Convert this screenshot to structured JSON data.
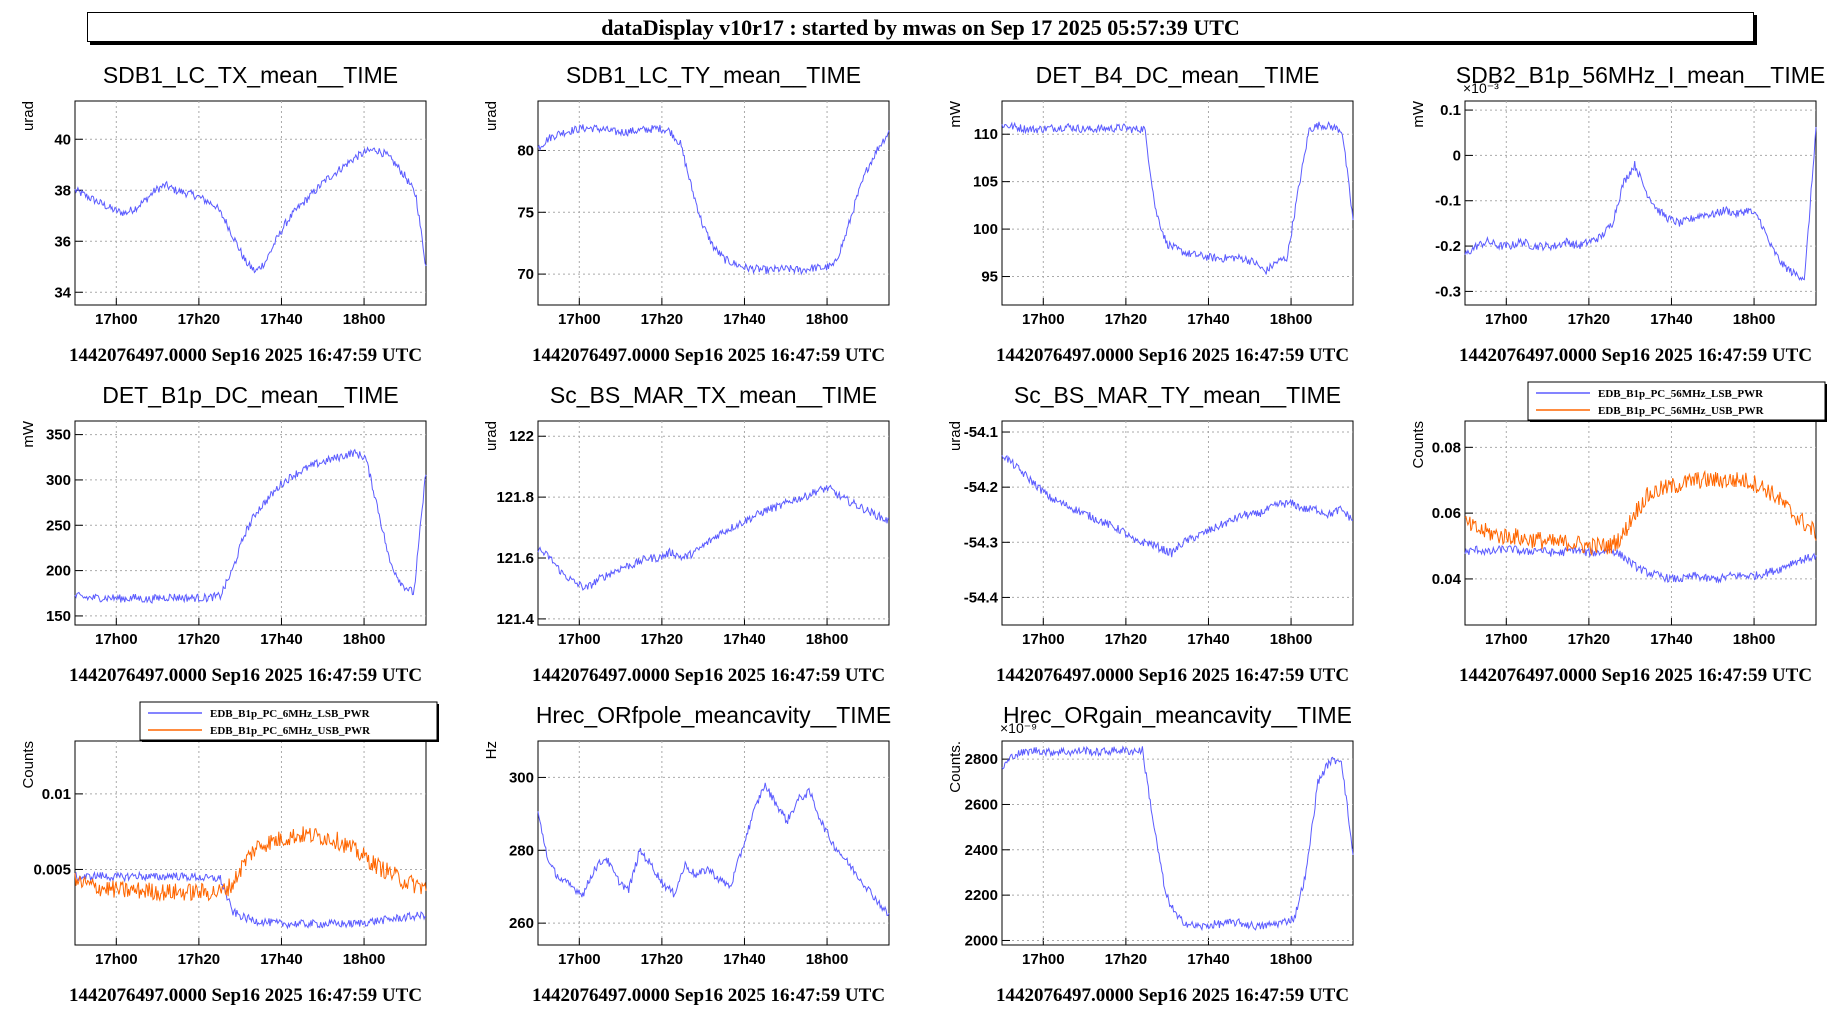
{
  "header": {
    "title": "dataDisplay v10r17 : started by mwas on Sep 17 2025 05:57:39 UTC"
  },
  "colors": {
    "primary": "#5c5cff",
    "secondary": "#ff6600",
    "frame": "#000000",
    "grid": "#aaaaaa"
  },
  "chart_data": [
    {
      "type": "line",
      "title": "SDB1_LC_TX_mean__TIME",
      "ylabel": "urad",
      "yticks": [
        34,
        36,
        38,
        40
      ],
      "ytick_labels": [
        "34",
        "36",
        "38",
        "40"
      ],
      "ylim": [
        33.5,
        41.5
      ],
      "x_ticks": [
        "17h00",
        "17h20",
        "17h40",
        "18h00"
      ],
      "footer": "1442076497.0000 Sep16 2025 16:47:59 UTC",
      "series": [
        {
          "values": [
            38,
            37.8,
            37.6,
            37.4,
            37.2,
            37.1,
            37.3,
            37.6,
            38,
            38.2,
            38,
            37.9,
            37.8,
            37.6,
            37.4,
            36.8,
            36,
            35.2,
            34.8,
            35.2,
            36,
            36.7,
            37.2,
            37.6,
            38,
            38.4,
            38.7,
            39,
            39.3,
            39.5,
            39.6,
            39.4,
            39,
            38.5,
            37.8,
            35
          ]
        }
      ]
    },
    {
      "type": "line",
      "title": "SDB1_LC_TY_mean__TIME",
      "ylabel": "urad",
      "yticks": [
        70,
        75,
        80
      ],
      "ytick_labels": [
        "70",
        "75",
        "80"
      ],
      "ylim": [
        67.5,
        84
      ],
      "x_ticks": [
        "17h00",
        "17h20",
        "17h40",
        "18h00"
      ],
      "footer": "1442076497.0000 Sep16 2025 16:47:59 UTC",
      "series": [
        {
          "values": [
            80.2,
            81,
            81.4,
            81.6,
            81.8,
            81.8,
            81.7,
            81.5,
            81.5,
            81.6,
            81.7,
            81.8,
            81.6,
            80.5,
            77,
            74,
            72.2,
            71.2,
            70.8,
            70.5,
            70.4,
            70.3,
            70.4,
            70.4,
            70.3,
            70.5,
            70.5,
            70.7,
            73,
            76,
            78.5,
            80.2,
            81.5
          ]
        }
      ]
    },
    {
      "type": "line",
      "title": "DET_B4_DC_mean__TIME",
      "ylabel": "mW",
      "yticks": [
        95,
        100,
        105,
        110
      ],
      "ytick_labels": [
        "95",
        "100",
        "105",
        "110"
      ],
      "ylim": [
        92,
        113.5
      ],
      "x_ticks": [
        "17h00",
        "17h20",
        "17h40",
        "18h00"
      ],
      "footer": "1442076497.0000 Sep16 2025 16:47:59 UTC",
      "series": [
        {
          "values": [
            111,
            110.8,
            110.6,
            110.5,
            110.6,
            110.7,
            110.8,
            110.6,
            110.5,
            110.6,
            110.6,
            110.7,
            110.5,
            110.6,
            102,
            98.5,
            97.8,
            97.4,
            97.2,
            97,
            96.9,
            97,
            96.9,
            96.5,
            95.5,
            96.5,
            97,
            104,
            110.5,
            111,
            110.8,
            110.4,
            101
          ]
        }
      ]
    },
    {
      "type": "line",
      "title": "SDB2_B1p_56MHz_I_mean__TIME",
      "ylabel": "mW",
      "multiplier": "×10⁻³",
      "yticks": [
        -0.3,
        -0.2,
        -0.1,
        0,
        0.1
      ],
      "ytick_labels": [
        "-0.3",
        "-0.2",
        "-0.1",
        "0",
        "0.1"
      ],
      "ylim": [
        -0.33,
        0.12
      ],
      "x_ticks": [
        "17h00",
        "17h20",
        "17h40",
        "18h00"
      ],
      "footer": "1442076497.0000 Sep16 2025 16:47:59 UTC",
      "series": [
        {
          "values": [
            -0.22,
            -0.2,
            -0.19,
            -0.2,
            -0.2,
            -0.19,
            -0.2,
            -0.2,
            -0.2,
            -0.19,
            -0.2,
            -0.19,
            -0.18,
            -0.15,
            -0.06,
            -0.02,
            -0.08,
            -0.12,
            -0.14,
            -0.15,
            -0.14,
            -0.13,
            -0.13,
            -0.12,
            -0.13,
            -0.12,
            -0.14,
            -0.2,
            -0.24,
            -0.26,
            -0.27,
            0.06
          ]
        }
      ]
    },
    {
      "type": "line",
      "title": "DET_B1p_DC_mean__TIME",
      "ylabel": "mW",
      "yticks": [
        150,
        200,
        250,
        300,
        350
      ],
      "ytick_labels": [
        "150",
        "200",
        "250",
        "300",
        "350"
      ],
      "ylim": [
        140,
        365
      ],
      "x_ticks": [
        "17h00",
        "17h20",
        "17h40",
        "18h00"
      ],
      "footer": "1442076497.0000 Sep16 2025 16:47:59 UTC",
      "series": [
        {
          "values": [
            172,
            170,
            170,
            170,
            169,
            170,
            168,
            170,
            171,
            170,
            170,
            170,
            172,
            200,
            240,
            265,
            280,
            295,
            305,
            312,
            318,
            322,
            326,
            330,
            325,
            270,
            210,
            185,
            175,
            310
          ]
        }
      ]
    },
    {
      "type": "line",
      "title": "Sc_BS_MAR_TX_mean__TIME",
      "ylabel": "urad",
      "yticks": [
        121.4,
        121.6,
        121.8,
        122
      ],
      "ytick_labels": [
        "121.4",
        "121.6",
        "121.8",
        "122"
      ],
      "ylim": [
        121.38,
        122.05
      ],
      "x_ticks": [
        "17h00",
        "17h20",
        "17h40",
        "18h00"
      ],
      "footer": "1442076497.0000 Sep16 2025 16:47:59 UTC",
      "series": [
        {
          "values": [
            121.63,
            121.6,
            121.55,
            121.52,
            121.5,
            121.53,
            121.55,
            121.57,
            121.58,
            121.6,
            121.6,
            121.62,
            121.6,
            121.62,
            121.65,
            121.68,
            121.7,
            121.72,
            121.74,
            121.76,
            121.77,
            121.79,
            121.8,
            121.82,
            121.83,
            121.8,
            121.78,
            121.76,
            121.74,
            121.72
          ]
        }
      ]
    },
    {
      "type": "line",
      "title": "Sc_BS_MAR_TY_mean__TIME",
      "ylabel": "urad",
      "yticks": [
        -54.4,
        -54.3,
        -54.2,
        -54.1
      ],
      "ytick_labels": [
        "-54.4",
        "-54.3",
        "-54.2",
        "-54.1"
      ],
      "ylim": [
        -54.45,
        -54.08
      ],
      "x_ticks": [
        "17h00",
        "17h20",
        "17h40",
        "18h00"
      ],
      "footer": "1442076497.0000 Sep16 2025 16:47:59 UTC",
      "series": [
        {
          "values": [
            -54.14,
            -54.16,
            -54.18,
            -54.2,
            -54.22,
            -54.23,
            -54.24,
            -54.25,
            -54.26,
            -54.27,
            -54.28,
            -54.3,
            -54.3,
            -54.31,
            -54.32,
            -54.3,
            -54.29,
            -54.28,
            -54.27,
            -54.26,
            -54.25,
            -54.25,
            -54.24,
            -54.23,
            -54.23,
            -54.24,
            -54.24,
            -54.25,
            -54.24,
            -54.26
          ]
        }
      ]
    },
    {
      "type": "line",
      "title": "",
      "ylabel": "Counts",
      "yticks": [
        0.04,
        0.06,
        0.08
      ],
      "ytick_labels": [
        "0.04",
        "0.06",
        "0.08"
      ],
      "ylim": [
        0.026,
        0.088
      ],
      "x_ticks": [
        "17h00",
        "17h20",
        "17h40",
        "18h00"
      ],
      "footer": "1442076497.0000 Sep16 2025 16:47:59 UTC",
      "legend": "top",
      "series": [
        {
          "name": "EDB_B1p_PC_56MHz_LSB_PWR",
          "values": [
            0.048,
            0.049,
            0.048,
            0.049,
            0.049,
            0.048,
            0.049,
            0.048,
            0.048,
            0.049,
            0.048,
            0.048,
            0.049,
            0.047,
            0.044,
            0.042,
            0.041,
            0.04,
            0.04,
            0.041,
            0.04,
            0.04,
            0.041,
            0.041,
            0.041,
            0.042,
            0.043,
            0.045,
            0.046,
            0.047
          ]
        },
        {
          "name": "EDB_B1p_PC_56MHz_USB_PWR",
          "values": [
            0.057,
            0.055,
            0.054,
            0.053,
            0.053,
            0.052,
            0.052,
            0.051,
            0.051,
            0.051,
            0.05,
            0.05,
            0.05,
            0.053,
            0.06,
            0.065,
            0.067,
            0.068,
            0.069,
            0.07,
            0.07,
            0.07,
            0.07,
            0.07,
            0.069,
            0.067,
            0.064,
            0.06,
            0.057,
            0.054
          ]
        }
      ]
    },
    {
      "type": "line",
      "title": "",
      "ylabel": "Counts",
      "yticks": [
        0.005,
        0.01
      ],
      "ytick_labels": [
        "0.005",
        "0.01"
      ],
      "ylim": [
        0.0,
        0.0135
      ],
      "x_ticks": [
        "17h00",
        "17h20",
        "17h40",
        "18h00"
      ],
      "footer": "1442076497.0000 Sep16 2025 16:47:59 UTC",
      "legend": "top",
      "series": [
        {
          "name": "EDB_B1p_PC_6MHz_LSB_PWR",
          "values": [
            0.0045,
            0.0045,
            0.0046,
            0.0045,
            0.0045,
            0.0046,
            0.0045,
            0.0045,
            0.0046,
            0.0045,
            0.0045,
            0.0044,
            0.0044,
            0.0022,
            0.0018,
            0.0016,
            0.0015,
            0.0014,
            0.0014,
            0.0014,
            0.0014,
            0.0014,
            0.0014,
            0.0014,
            0.0015,
            0.0016,
            0.0017,
            0.0018,
            0.0019,
            0.002
          ]
        },
        {
          "name": "EDB_B1p_PC_6MHz_USB_PWR",
          "values": [
            0.0042,
            0.004,
            0.0038,
            0.0037,
            0.0036,
            0.0036,
            0.0036,
            0.0035,
            0.0035,
            0.0035,
            0.0035,
            0.0035,
            0.0035,
            0.004,
            0.0055,
            0.0065,
            0.0068,
            0.007,
            0.0072,
            0.0073,
            0.0072,
            0.0071,
            0.0068,
            0.0063,
            0.0058,
            0.0052,
            0.0048,
            0.0043,
            0.004,
            0.0038
          ]
        }
      ]
    },
    {
      "type": "line",
      "title": "Hrec_ORfpole_meancavity__TIME",
      "ylabel": "Hz",
      "yticks": [
        260,
        280,
        300
      ],
      "ytick_labels": [
        "260",
        "280",
        "300"
      ],
      "ylim": [
        254,
        310
      ],
      "x_ticks": [
        "17h00",
        "17h20",
        "17h40",
        "18h00"
      ],
      "footer": "1442076497.0000 Sep16 2025 16:47:59 UTC",
      "series": [
        {
          "values": [
            290,
            276,
            272,
            270,
            268,
            275,
            278,
            272,
            269,
            280,
            276,
            271,
            268,
            276,
            273,
            275,
            272,
            270,
            280,
            290,
            298,
            293,
            288,
            294,
            296,
            288,
            282,
            278,
            274,
            270,
            266,
            262
          ]
        }
      ]
    },
    {
      "type": "line",
      "title": "Hrec_ORgain_meancavity__TIME",
      "ylabel": "Counts.",
      "multiplier": "×10⁻⁹",
      "yticks": [
        2000,
        2200,
        2400,
        2600,
        2800
      ],
      "ytick_labels": [
        "2000",
        "2200",
        "2400",
        "2600",
        "2800"
      ],
      "ylim": [
        1980,
        2880
      ],
      "x_ticks": [
        "17h00",
        "17h20",
        "17h40",
        "18h00"
      ],
      "footer": "1442076497.0000 Sep16 2025 16:47:59 UTC",
      "series": [
        {
          "values": [
            2760,
            2820,
            2830,
            2840,
            2830,
            2835,
            2830,
            2840,
            2830,
            2835,
            2840,
            2835,
            2840,
            2500,
            2200,
            2100,
            2070,
            2060,
            2070,
            2075,
            2080,
            2070,
            2060,
            2070,
            2080,
            2100,
            2300,
            2700,
            2790,
            2800,
            2380
          ]
        }
      ]
    }
  ]
}
